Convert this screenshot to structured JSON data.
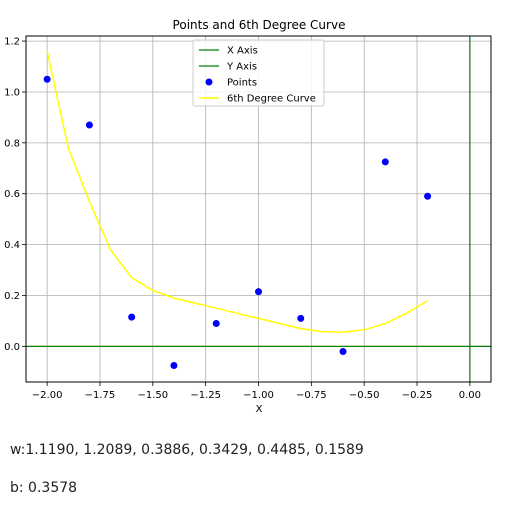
{
  "chart_data": {
    "type": "scatter",
    "title": "Points and 6th Degree Curve",
    "xlabel": "X",
    "ylabel": "",
    "xlim": [
      -2.1,
      0.1
    ],
    "ylim": [
      -0.14,
      1.22
    ],
    "xticks": [
      -2.0,
      -1.75,
      -1.5,
      -1.25,
      -1.0,
      -0.75,
      -0.5,
      -0.25,
      0.0
    ],
    "xtick_labels": [
      "−2.00",
      "−1.75",
      "−1.50",
      "−1.25",
      "−1.00",
      "−0.75",
      "−0.50",
      "−0.25",
      "0.00"
    ],
    "yticks": [
      0.0,
      0.2,
      0.4,
      0.6,
      0.8,
      1.0,
      1.2
    ],
    "ytick_labels": [
      "0.0",
      "0.2",
      "0.4",
      "0.6",
      "0.8",
      "1.0",
      "1.2"
    ],
    "grid": true,
    "legend_position": "top-center",
    "series": [
      {
        "name": "X Axis",
        "kind": "hline",
        "y": 0,
        "color": "#008000"
      },
      {
        "name": "Y Axis",
        "kind": "vline",
        "x": 0,
        "color": "#008000"
      },
      {
        "name": "Points",
        "kind": "scatter",
        "color": "#0000ff",
        "x": [
          -2.0,
          -1.8,
          -1.6,
          -1.4,
          -1.2,
          -1.0,
          -0.8,
          -0.6,
          -0.4,
          -0.2
        ],
        "y": [
          1.05,
          0.87,
          0.115,
          -0.075,
          0.09,
          0.215,
          0.11,
          -0.02,
          0.725,
          0.59
        ]
      },
      {
        "name": "6th Degree Curve",
        "kind": "line",
        "color": "#ffff00",
        "x": [
          -2.0,
          -1.9,
          -1.8,
          -1.7,
          -1.6,
          -1.5,
          -1.4,
          -1.3,
          -1.2,
          -1.1,
          -1.0,
          -0.9,
          -0.8,
          -0.7,
          -0.6,
          -0.5,
          -0.4,
          -0.3,
          -0.2
        ],
        "y": [
          1.16,
          0.78,
          0.57,
          0.38,
          0.27,
          0.22,
          0.19,
          0.17,
          0.15,
          0.13,
          0.11,
          0.09,
          0.07,
          0.058,
          0.056,
          0.065,
          0.09,
          0.13,
          0.18
        ]
      }
    ]
  },
  "caption": {
    "w_text": "w:1.1190, 1.2089, 0.3886, 0.3429, 0.4485, 0.1589",
    "b_text": "b: 0.3578"
  }
}
